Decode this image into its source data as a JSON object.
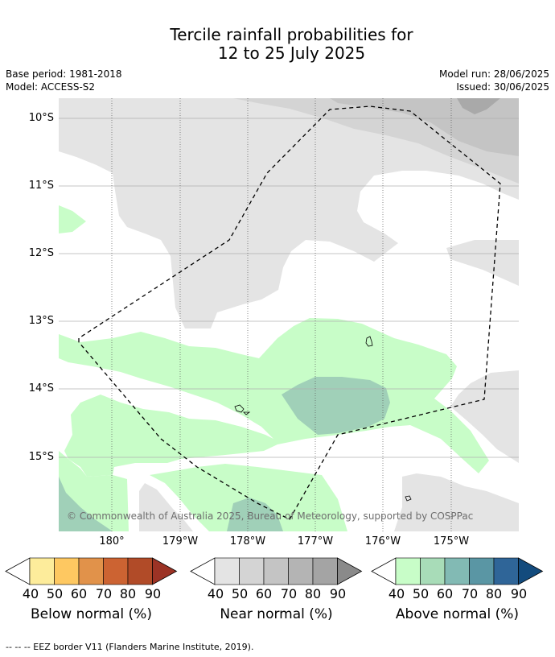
{
  "title_line1": "Tercile rainfall probabilities for",
  "title_line2": "12 to 25 July 2025",
  "base_period": "Base period: 1981-2018",
  "model": "Model: ACCESS-S2",
  "model_run": "Model run: 28/06/2025",
  "issued": "Issued: 30/06/2025",
  "lat_labels": [
    "10°S",
    "11°S",
    "12°S",
    "13°S",
    "14°S",
    "15°S"
  ],
  "lon_labels": [
    "180°",
    "179°W",
    "178°W",
    "177°W",
    "176°W",
    "175°W"
  ],
  "copyright": "© Commonwealth of Australia 2025, Bureau of Meteorology, supported by COSPPac",
  "colorbars": [
    {
      "label": "Below normal (%)",
      "ticks": [
        "40",
        "50",
        "60",
        "70",
        "80",
        "90"
      ],
      "colors": [
        "#fdec9b",
        "#fec861",
        "#e1924a",
        "#cc6332",
        "#b14b28",
        "#9c3325"
      ]
    },
    {
      "label": "Near normal (%)",
      "ticks": [
        "40",
        "50",
        "60",
        "70",
        "80",
        "90"
      ],
      "colors": [
        "#e4e4e4",
        "#d4d4d4",
        "#c4c4c4",
        "#b4b4b4",
        "#a4a4a4",
        "#8a8a8a"
      ]
    },
    {
      "label": "Above normal (%)",
      "ticks": [
        "40",
        "50",
        "60",
        "70",
        "80",
        "90"
      ],
      "colors": [
        "#c8fdc8",
        "#a8dcb8",
        "#82bab4",
        "#5a96a4",
        "#2f6598",
        "#134b7d"
      ]
    }
  ],
  "footnote": "--  --  -- EEZ border V11 (Flanders Marine Institute, 2019)."
}
